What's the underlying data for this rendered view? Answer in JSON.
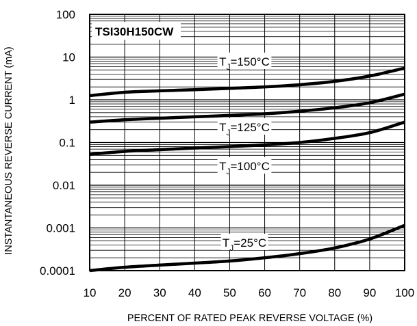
{
  "chart_data": {
    "type": "line",
    "title": "TSI30H150CW",
    "xlabel": "PERCENT OF RATED PEAK REVERSE VOLTAGE (%)",
    "ylabel": "INSTANTANEOUS REVERSE CURRENT (mA)",
    "xlim": [
      10,
      100
    ],
    "ylim": [
      0.0001,
      100
    ],
    "yscale": "log",
    "grid": true,
    "x_ticks": [
      "10",
      "20",
      "30",
      "40",
      "50",
      "60",
      "70",
      "80",
      "90",
      "100"
    ],
    "y_ticks": [
      "0.0001",
      "0.001",
      "0.01",
      "0.1",
      "1",
      "10",
      "100"
    ],
    "series": [
      {
        "name": "TJ=150°C",
        "label_main": "T",
        "label_sub": "J",
        "label_rest": "=150°C",
        "x": [
          10,
          20,
          30,
          40,
          50,
          60,
          70,
          80,
          90,
          100
        ],
        "y": [
          1.25,
          1.5,
          1.62,
          1.72,
          1.85,
          2.0,
          2.25,
          2.7,
          3.6,
          5.5
        ]
      },
      {
        "name": "TJ=125°C",
        "label_main": "T",
        "label_sub": "J",
        "label_rest": "=125°C",
        "x": [
          10,
          20,
          30,
          40,
          50,
          60,
          70,
          80,
          90,
          100
        ],
        "y": [
          0.3,
          0.34,
          0.37,
          0.4,
          0.43,
          0.47,
          0.54,
          0.65,
          0.85,
          1.35
        ]
      },
      {
        "name": "TJ=100°C",
        "label_main": "T",
        "label_sub": "J",
        "label_rest": "=100°C",
        "x": [
          10,
          20,
          30,
          40,
          50,
          60,
          70,
          80,
          90,
          100
        ],
        "y": [
          0.053,
          0.062,
          0.068,
          0.074,
          0.08,
          0.088,
          0.1,
          0.125,
          0.17,
          0.3
        ]
      },
      {
        "name": "TJ=25°C",
        "label_main": "T",
        "label_sub": "J",
        "label_rest": "=25°C",
        "x": [
          10,
          20,
          30,
          40,
          50,
          60,
          70,
          80,
          90,
          100
        ],
        "y": [
          0.0001,
          0.00012,
          0.000135,
          0.00015,
          0.000168,
          0.0002,
          0.00025,
          0.00034,
          0.00055,
          0.00115
        ]
      }
    ]
  }
}
